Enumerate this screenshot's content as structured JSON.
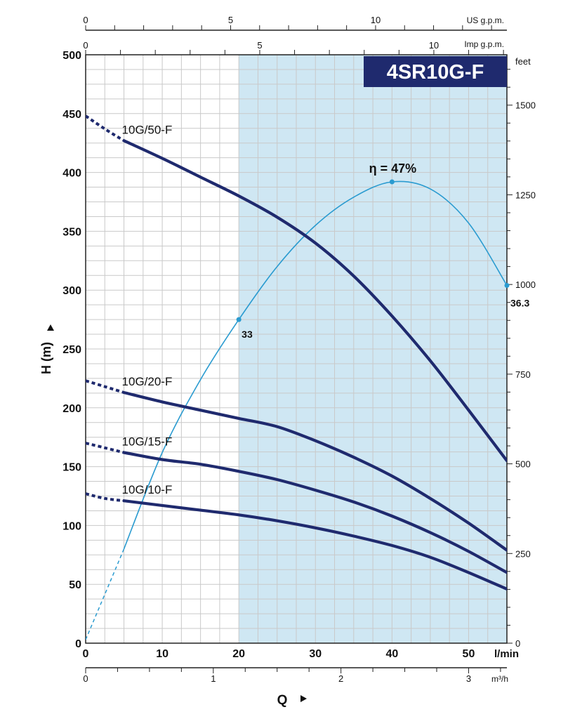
{
  "chart_data": {
    "type": "line",
    "title": "4SR10G-F",
    "xlabel": "Q",
    "ylabel": "H (m)",
    "x_unit": "l/min",
    "xlim": [
      0,
      55
    ],
    "ylim": [
      0,
      500
    ],
    "x_ticks": [
      0,
      10,
      20,
      30,
      40,
      50
    ],
    "y_ticks": [
      0,
      50,
      100,
      150,
      200,
      250,
      300,
      350,
      400,
      450,
      500
    ],
    "grid": true,
    "operating_range": [
      20,
      55
    ],
    "secondary_axes": {
      "us_gpm": {
        "unit": "US g.p.m.",
        "ticks": [
          0,
          5,
          10
        ]
      },
      "imp_gpm": {
        "unit": "Imp g.p.m.",
        "ticks": [
          0,
          5,
          10
        ]
      },
      "m3h": {
        "unit": "m³/h",
        "ticks": [
          0,
          1,
          2,
          3
        ]
      },
      "feet": {
        "unit": "feet",
        "ticks": [
          0,
          250,
          500,
          750,
          1000,
          1250,
          1500
        ]
      }
    },
    "series": [
      {
        "name": "10G/50-F",
        "x": [
          0,
          2.5,
          5,
          10,
          15,
          20,
          25,
          30,
          35,
          40,
          45,
          50,
          55
        ],
        "y": [
          448,
          437,
          427,
          412,
          396,
          380,
          362,
          340,
          312,
          278,
          240,
          198,
          155
        ],
        "dashed_to": 5
      },
      {
        "name": "10G/20-F",
        "x": [
          0,
          2.5,
          5,
          10,
          15,
          20,
          25,
          30,
          35,
          40,
          45,
          50,
          55
        ],
        "y": [
          223,
          218,
          213,
          205,
          198,
          191,
          184,
          172,
          158,
          142,
          123,
          102,
          79
        ],
        "dashed_to": 5
      },
      {
        "name": "10G/15-F",
        "x": [
          0,
          2.5,
          5,
          10,
          15,
          20,
          25,
          30,
          35,
          40,
          45,
          50,
          55
        ],
        "y": [
          170,
          166,
          162,
          156,
          152,
          146,
          139,
          130,
          120,
          108,
          94,
          78,
          60
        ],
        "dashed_to": 5
      },
      {
        "name": "10G/10-F",
        "x": [
          0,
          2.5,
          5,
          10,
          15,
          20,
          25,
          30,
          35,
          40,
          45,
          50,
          55
        ],
        "y": [
          127,
          123,
          121,
          117,
          113,
          109,
          104,
          98,
          91,
          83,
          73,
          60,
          46
        ],
        "dashed_to": 5
      }
    ],
    "efficiency_curve": {
      "x": [
        0,
        5,
        10,
        15,
        20,
        25,
        30,
        35,
        40,
        45,
        50,
        55
      ],
      "y": [
        3,
        80,
        162,
        224,
        275,
        320,
        355,
        379,
        392,
        386,
        357,
        304
      ],
      "dashed_to": 4,
      "annotations": [
        {
          "x": 20,
          "y": 275,
          "label": "33"
        },
        {
          "x": 40,
          "y": 392,
          "label": "η = 47%"
        },
        {
          "x": 55,
          "y": 304,
          "label": "36.3"
        }
      ]
    }
  }
}
